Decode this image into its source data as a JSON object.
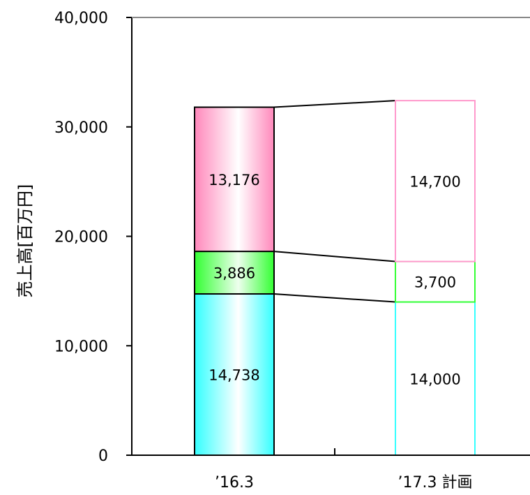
{
  "chart_data": {
    "type": "bar",
    "stacked": true,
    "ylabel": "売上高[百万円]",
    "xlabel": "",
    "ylim": [
      0,
      40000
    ],
    "yticks": [
      0,
      10000,
      20000,
      30000,
      40000
    ],
    "ytick_labels": [
      "0",
      "10,000",
      "20,000",
      "30,000",
      "40,000"
    ],
    "categories": [
      "’16.3",
      "’17.3 計画"
    ],
    "series": [
      {
        "values": [
          14738,
          14000
        ],
        "labels": [
          "14,738",
          "14,000"
        ],
        "color": "#33ffff"
      },
      {
        "values": [
          3886,
          3700
        ],
        "labels": [
          "3,886",
          "3,700"
        ],
        "color": "#33ff33"
      },
      {
        "values": [
          13176,
          14700
        ],
        "labels": [
          "13,176",
          "14,700"
        ],
        "color": "#ff99cc"
      }
    ],
    "category_styles": [
      "gradient-fill",
      "outline-only"
    ],
    "series_connectors": true,
    "grid": false,
    "legend": "none"
  }
}
